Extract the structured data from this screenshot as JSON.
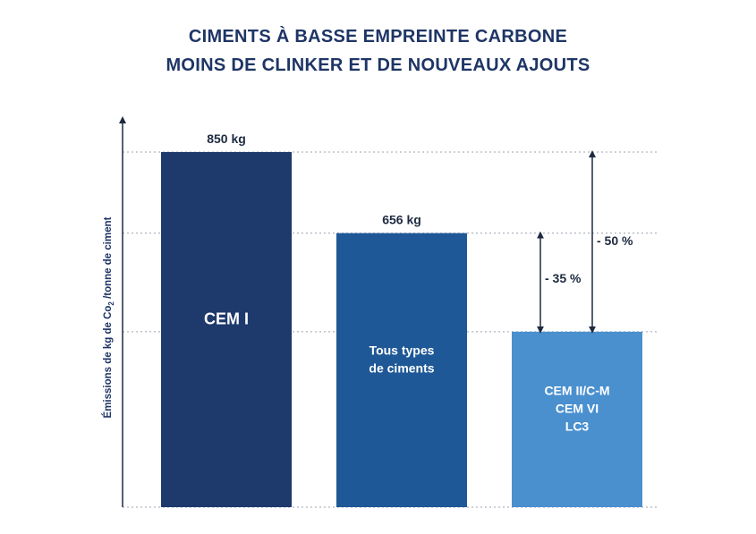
{
  "header": {
    "title_line1": "CIMENTS À BASSE EMPREINTE CARBONE",
    "title_line2": "MOINS DE CLINKER ET DE NOUVEAUX AJOUTS"
  },
  "chart_data": {
    "type": "bar",
    "ylabel": "Émissions de kg de Co2 /tonne de ciment",
    "ylim": [
      0,
      850
    ],
    "grid": true,
    "categories": [
      {
        "label_lines": [
          "CEM I"
        ],
        "color": "#1e3a6c"
      },
      {
        "label_lines": [
          "Tous types",
          "de ciments"
        ],
        "color": "#1f5896"
      },
      {
        "label_lines": [
          "CEM II/C-M",
          "CEM VI",
          "LC3"
        ],
        "color": "#4a90cf"
      }
    ],
    "values": [
      850,
      656,
      420
    ],
    "value_labels": [
      "850 kg",
      "656 kg",
      ""
    ],
    "annotations": [
      {
        "text": "- 35 %",
        "from_value": 656,
        "to_value": 420
      },
      {
        "text": "- 50 %",
        "from_value": 850,
        "to_value": 420
      }
    ]
  }
}
